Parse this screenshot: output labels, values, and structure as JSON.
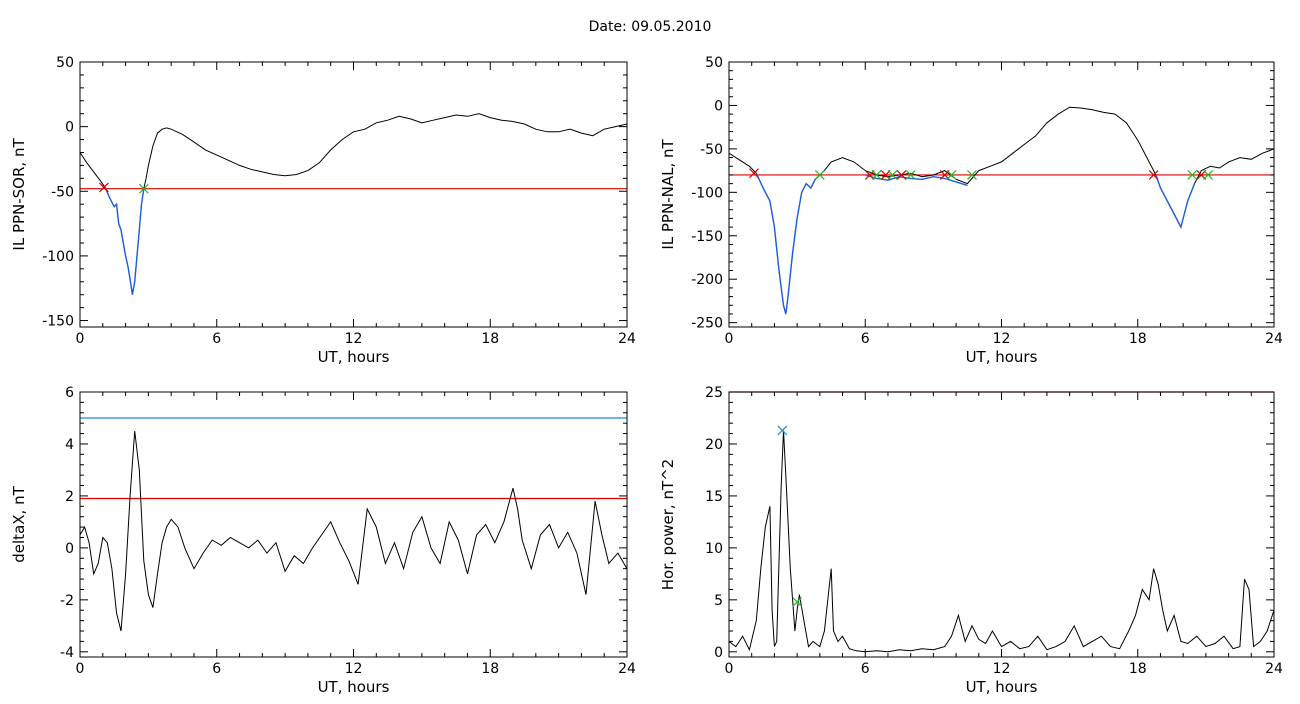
{
  "header": {
    "title": "Date:  09.05.2010"
  },
  "chart_data": [
    {
      "type": "line",
      "xlabel": "UT, hours",
      "ylabel": "IL PPN-SOR, nT",
      "xlim": [
        0,
        24
      ],
      "ylim": [
        -155,
        50
      ],
      "xticks": [
        0,
        6,
        12,
        18,
        24
      ],
      "yticks": [
        -150,
        -100,
        -50,
        0,
        50
      ],
      "thresholds": [
        {
          "y": -48,
          "color": "#e00000"
        }
      ],
      "series": [
        {
          "color": "#000000",
          "x": [
            0,
            0.3,
            0.6,
            0.9,
            1.1,
            1.3,
            1.5,
            1.6,
            1.7,
            1.8,
            1.9,
            2.0,
            2.1,
            2.2,
            2.3,
            2.4,
            2.5,
            2.6,
            2.7,
            2.8,
            2.9,
            3.0,
            3.2,
            3.4,
            3.6,
            3.8,
            4.0,
            4.5,
            5.0,
            5.5,
            6.0,
            6.5,
            7.0,
            7.5,
            8.0,
            8.5,
            9.0,
            9.5,
            10.0,
            10.5,
            11.0,
            11.5,
            12.0,
            12.5,
            13.0,
            13.5,
            14.0,
            14.5,
            15.0,
            15.5,
            16.0,
            16.5,
            17.0,
            17.5,
            18.0,
            18.5,
            19.0,
            19.5,
            20.0,
            20.5,
            21.0,
            21.5,
            22.0,
            22.5,
            23.0,
            23.5,
            24.0
          ],
          "y": [
            -20,
            -28,
            -35,
            -42,
            -47,
            -55,
            -62,
            -60,
            -75,
            -80,
            -90,
            -100,
            -108,
            -118,
            -130,
            -120,
            -100,
            -80,
            -60,
            -48,
            -40,
            -30,
            -15,
            -5,
            -2,
            -1,
            -2,
            -6,
            -12,
            -18,
            -22,
            -26,
            -30,
            -33,
            -35,
            -37,
            -38,
            -37,
            -34,
            -28,
            -18,
            -10,
            -4,
            -2,
            3,
            5,
            8,
            6,
            3,
            5,
            7,
            9,
            8,
            10,
            7,
            5,
            4,
            2,
            -2,
            -4,
            -4,
            -2,
            -5,
            -7,
            -2,
            0,
            2
          ]
        },
        {
          "color": "#1f5fdf",
          "x": [
            1.1,
            1.3,
            1.5,
            1.6,
            1.7,
            1.8,
            1.9,
            2.0,
            2.1,
            2.2,
            2.3,
            2.4,
            2.5,
            2.6,
            2.7,
            2.8
          ],
          "y": [
            -47,
            -55,
            -62,
            -60,
            -75,
            -80,
            -90,
            -100,
            -108,
            -118,
            -130,
            -120,
            -100,
            -80,
            -60,
            -48
          ]
        }
      ],
      "markers": [
        {
          "x": 1.05,
          "y": -47,
          "color": "#e00000"
        },
        {
          "x": 2.8,
          "y": -48,
          "color": "#22bb22"
        }
      ]
    },
    {
      "type": "line",
      "xlabel": "UT, hours",
      "ylabel": "IL PPN-NAL, nT",
      "xlim": [
        0,
        24
      ],
      "ylim": [
        -255,
        50
      ],
      "xticks": [
        0,
        6,
        12,
        18,
        24
      ],
      "yticks": [
        -250,
        -200,
        -150,
        -100,
        -50,
        0,
        50
      ],
      "thresholds": [
        {
          "y": -80,
          "color": "#e00000"
        }
      ],
      "series": [
        {
          "color": "#000000",
          "x": [
            0,
            0.3,
            0.6,
            0.9,
            1.2,
            1.5,
            1.8,
            2.0,
            2.2,
            2.4,
            2.5,
            2.6,
            2.8,
            3.0,
            3.2,
            3.4,
            3.6,
            3.8,
            4.0,
            4.2,
            4.5,
            5.0,
            5.5,
            6.0,
            6.5,
            7.0,
            7.5,
            8.0,
            8.5,
            9.0,
            9.5,
            10.0,
            10.5,
            11.0,
            11.5,
            12.0,
            12.5,
            13.0,
            13.5,
            14.0,
            14.5,
            15.0,
            15.5,
            16.0,
            16.5,
            17.0,
            17.5,
            18.0,
            18.5,
            18.8,
            19.0,
            19.3,
            19.6,
            19.9,
            20.2,
            20.5,
            20.8,
            21.2,
            21.6,
            22.0,
            22.5,
            23.0,
            23.5,
            24.0
          ],
          "y": [
            -55,
            -60,
            -65,
            -70,
            -78,
            -95,
            -110,
            -140,
            -190,
            -230,
            -240,
            -220,
            -170,
            -130,
            -100,
            -90,
            -95,
            -85,
            -80,
            -75,
            -65,
            -60,
            -65,
            -75,
            -80,
            -82,
            -80,
            -78,
            -82,
            -80,
            -75,
            -85,
            -90,
            -75,
            -70,
            -65,
            -55,
            -45,
            -35,
            -20,
            -10,
            -2,
            -3,
            -5,
            -8,
            -10,
            -20,
            -40,
            -65,
            -80,
            -95,
            -110,
            -125,
            -140,
            -110,
            -90,
            -75,
            -70,
            -72,
            -65,
            -60,
            -62,
            -55,
            -50
          ]
        },
        {
          "color": "#1f5fdf",
          "x": [
            1.2,
            1.5,
            1.8,
            2.0,
            2.2,
            2.4,
            2.5,
            2.6,
            2.8,
            3.0,
            3.2,
            3.4,
            3.6,
            3.8,
            4.0
          ],
          "y": [
            -78,
            -95,
            -110,
            -140,
            -190,
            -230,
            -240,
            -220,
            -170,
            -130,
            -100,
            -90,
            -95,
            -85,
            -80
          ]
        },
        {
          "color": "#1f5fdf",
          "x": [
            6.0,
            6.5,
            7.0,
            7.5,
            8.0,
            8.5,
            9.0,
            9.5,
            10.0,
            10.5
          ],
          "y": [
            -80,
            -84,
            -86,
            -82,
            -84,
            -85,
            -82,
            -84,
            -88,
            -92
          ]
        },
        {
          "color": "#1f5fdf",
          "x": [
            18.8,
            19.0,
            19.3,
            19.6,
            19.9,
            20.2,
            20.5
          ],
          "y": [
            -80,
            -95,
            -110,
            -125,
            -140,
            -110,
            -90
          ]
        }
      ],
      "markers": [
        {
          "x": 1.1,
          "y": -78,
          "color": "#e00000"
        },
        {
          "x": 4.0,
          "y": -80,
          "color": "#22bb22"
        },
        {
          "x": 6.2,
          "y": -80,
          "color": "#e00000"
        },
        {
          "x": 6.5,
          "y": -80,
          "color": "#22bb22"
        },
        {
          "x": 6.9,
          "y": -80,
          "color": "#e00000"
        },
        {
          "x": 7.2,
          "y": -80,
          "color": "#22bb22"
        },
        {
          "x": 7.6,
          "y": -80,
          "color": "#e00000"
        },
        {
          "x": 8.0,
          "y": -80,
          "color": "#22bb22"
        },
        {
          "x": 9.5,
          "y": -80,
          "color": "#e00000"
        },
        {
          "x": 9.8,
          "y": -80,
          "color": "#22bb22"
        },
        {
          "x": 10.7,
          "y": -80,
          "color": "#22bb22"
        },
        {
          "x": 18.7,
          "y": -80,
          "color": "#e00000"
        },
        {
          "x": 20.4,
          "y": -80,
          "color": "#22bb22"
        },
        {
          "x": 20.8,
          "y": -80,
          "color": "#e00000"
        },
        {
          "x": 21.1,
          "y": -80,
          "color": "#22bb22"
        }
      ]
    },
    {
      "type": "line",
      "xlabel": "UT, hours",
      "ylabel": "deltaX, nT",
      "xlim": [
        0,
        24
      ],
      "ylim": [
        -4.2,
        6
      ],
      "xticks": [
        0,
        6,
        12,
        18,
        24
      ],
      "yticks": [
        -4,
        -2,
        0,
        2,
        4,
        6
      ],
      "thresholds": [
        {
          "y": 5.0,
          "color": "#1f8fbf"
        },
        {
          "y": 1.9,
          "color": "#e00000"
        }
      ],
      "series": [
        {
          "color": "#000000",
          "x": [
            0,
            0.2,
            0.4,
            0.6,
            0.8,
            1.0,
            1.2,
            1.4,
            1.6,
            1.8,
            2.0,
            2.2,
            2.4,
            2.6,
            2.8,
            3.0,
            3.2,
            3.4,
            3.6,
            3.8,
            4.0,
            4.3,
            4.6,
            5.0,
            5.4,
            5.8,
            6.2,
            6.6,
            7.0,
            7.4,
            7.8,
            8.2,
            8.6,
            9.0,
            9.4,
            9.8,
            10.2,
            10.6,
            11.0,
            11.4,
            11.8,
            12.2,
            12.6,
            13.0,
            13.4,
            13.8,
            14.2,
            14.6,
            15.0,
            15.4,
            15.8,
            16.2,
            16.6,
            17.0,
            17.4,
            17.8,
            18.2,
            18.6,
            19.0,
            19.2,
            19.4,
            19.8,
            20.2,
            20.6,
            21.0,
            21.4,
            21.8,
            22.2,
            22.6,
            22.9,
            23.2,
            23.6,
            24.0
          ],
          "y": [
            0.5,
            0.8,
            0.2,
            -1.0,
            -0.6,
            0.4,
            0.2,
            -0.8,
            -2.5,
            -3.2,
            -1.0,
            2.0,
            4.5,
            3.0,
            -0.5,
            -1.8,
            -2.3,
            -1.0,
            0.2,
            0.8,
            1.1,
            0.8,
            0.0,
            -0.8,
            -0.2,
            0.3,
            0.1,
            0.4,
            0.2,
            0.0,
            0.3,
            -0.2,
            0.2,
            -0.9,
            -0.3,
            -0.6,
            0.0,
            0.5,
            1.0,
            0.2,
            -0.5,
            -1.4,
            1.5,
            0.8,
            -0.6,
            0.2,
            -0.8,
            0.6,
            1.2,
            0.0,
            -0.6,
            1.0,
            0.3,
            -1.0,
            0.5,
            0.9,
            0.2,
            1.0,
            2.3,
            1.5,
            0.3,
            -0.8,
            0.5,
            0.9,
            0.0,
            0.6,
            -0.2,
            -1.8,
            1.8,
            0.5,
            -0.6,
            -0.2,
            -0.8
          ]
        }
      ],
      "markers": []
    },
    {
      "type": "line",
      "xlabel": "UT, hours",
      "ylabel": "Hor. power, nT^2",
      "xlim": [
        0,
        24
      ],
      "ylim": [
        -0.5,
        25
      ],
      "xticks": [
        0,
        6,
        12,
        18,
        24
      ],
      "yticks": [
        0,
        5,
        10,
        15,
        20,
        25
      ],
      "thresholds": [
        {
          "y": 25,
          "color": "#e00000"
        }
      ],
      "series": [
        {
          "color": "#000000",
          "x": [
            0,
            0.3,
            0.6,
            0.9,
            1.2,
            1.4,
            1.6,
            1.8,
            1.9,
            2.0,
            2.1,
            2.3,
            2.4,
            2.5,
            2.7,
            2.9,
            3.0,
            3.1,
            3.3,
            3.5,
            3.7,
            4.0,
            4.2,
            4.4,
            4.5,
            4.6,
            4.8,
            5.0,
            5.3,
            5.6,
            6.0,
            6.5,
            7.0,
            7.5,
            8.0,
            8.5,
            9.0,
            9.5,
            9.8,
            10.1,
            10.4,
            10.7,
            11.0,
            11.3,
            11.6,
            12.0,
            12.4,
            12.8,
            13.2,
            13.6,
            14.0,
            14.4,
            14.8,
            15.2,
            15.6,
            16.0,
            16.4,
            16.8,
            17.2,
            17.6,
            17.9,
            18.2,
            18.5,
            18.7,
            18.9,
            19.1,
            19.3,
            19.6,
            19.9,
            20.2,
            20.6,
            21.0,
            21.4,
            21.8,
            22.2,
            22.5,
            22.7,
            22.9,
            23.1,
            23.4,
            23.7,
            24.0
          ],
          "y": [
            1.0,
            0.5,
            1.5,
            0.2,
            3.0,
            8.0,
            12.0,
            14.0,
            4.0,
            0.5,
            1.0,
            16.0,
            21.3,
            17.0,
            8.0,
            2.0,
            4.0,
            5.5,
            3.0,
            0.5,
            1.0,
            0.5,
            2.0,
            6.0,
            8.0,
            2.0,
            1.0,
            1.5,
            0.3,
            0.1,
            0.0,
            0.1,
            0.0,
            0.2,
            0.1,
            0.3,
            0.2,
            0.5,
            1.5,
            3.5,
            1.0,
            2.5,
            1.2,
            0.8,
            2.0,
            0.5,
            1.0,
            0.3,
            0.5,
            1.5,
            0.2,
            0.5,
            1.0,
            2.5,
            0.5,
            1.0,
            1.5,
            0.5,
            0.3,
            2.0,
            3.5,
            6.0,
            5.0,
            8.0,
            6.5,
            4.0,
            2.0,
            3.5,
            1.0,
            0.8,
            1.5,
            0.5,
            0.8,
            1.5,
            0.3,
            0.5,
            7.0,
            6.0,
            0.5,
            1.0,
            2.0,
            4.0
          ]
        }
      ],
      "markers": [
        {
          "x": 2.35,
          "y": 21.3,
          "color": "#1f8fbf"
        },
        {
          "x": 3.0,
          "y": 4.8,
          "color": "#22bb22"
        }
      ]
    }
  ]
}
